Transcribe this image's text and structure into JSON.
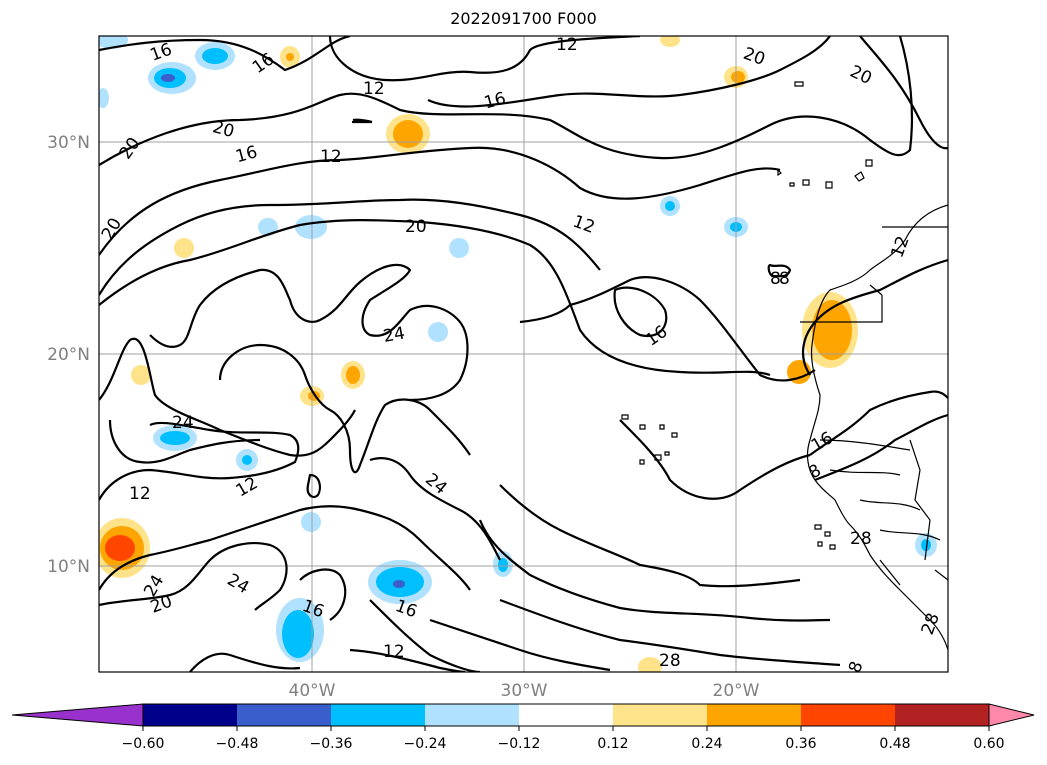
{
  "title": "2022091700 F000",
  "lat_labels": [
    "30°N",
    "20°N",
    "10°N"
  ],
  "lon_labels": [
    "40°W",
    "30°W",
    "20°W"
  ],
  "contour_labels": [
    "12",
    "16",
    "20",
    "16",
    "16",
    "20",
    "12",
    "12",
    "16",
    "20",
    "20",
    "20",
    "12",
    "20",
    "12",
    "8",
    "24",
    "16",
    "8",
    "24",
    "12",
    "12",
    "24",
    "16",
    "24",
    "20",
    "24",
    "16",
    "16",
    "12",
    "28",
    "28",
    "8",
    "28",
    "8"
  ],
  "colorbar": {
    "ticks": [
      "−0.60",
      "−0.48",
      "−0.36",
      "−0.24",
      "−0.12",
      "0.12",
      "0.24",
      "0.36",
      "0.48",
      "0.60"
    ],
    "colors": [
      "#9932cc",
      "#00008b",
      "#3a5fcd",
      "#00bfff",
      "#b0e2ff",
      "#ffffff",
      "#ffe38a",
      "#ffa500",
      "#ff4500",
      "#b22222",
      "#ff88aa"
    ]
  }
}
